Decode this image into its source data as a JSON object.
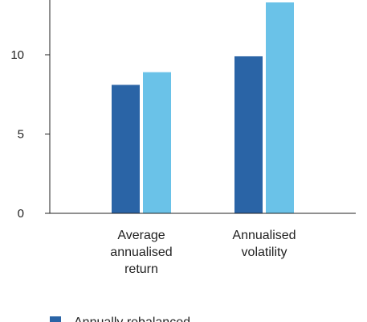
{
  "chart_data": {
    "type": "bar",
    "title": "",
    "xlabel": "",
    "ylabel": "",
    "ylim": [
      0,
      13.5
    ],
    "yticks": [
      "0",
      "5",
      "10"
    ],
    "categories": [
      [
        "Average",
        "annualised",
        "return"
      ],
      [
        "Annualised",
        "volatility"
      ]
    ],
    "series": [
      {
        "name": "Annually rebalanced",
        "color": "#2a64a6",
        "values": [
          8.1,
          9.9
        ]
      },
      {
        "name": "",
        "color": "#6ac2e8",
        "values": [
          8.9,
          13.3
        ]
      }
    ],
    "grid": false,
    "legend": "bottom-left"
  }
}
